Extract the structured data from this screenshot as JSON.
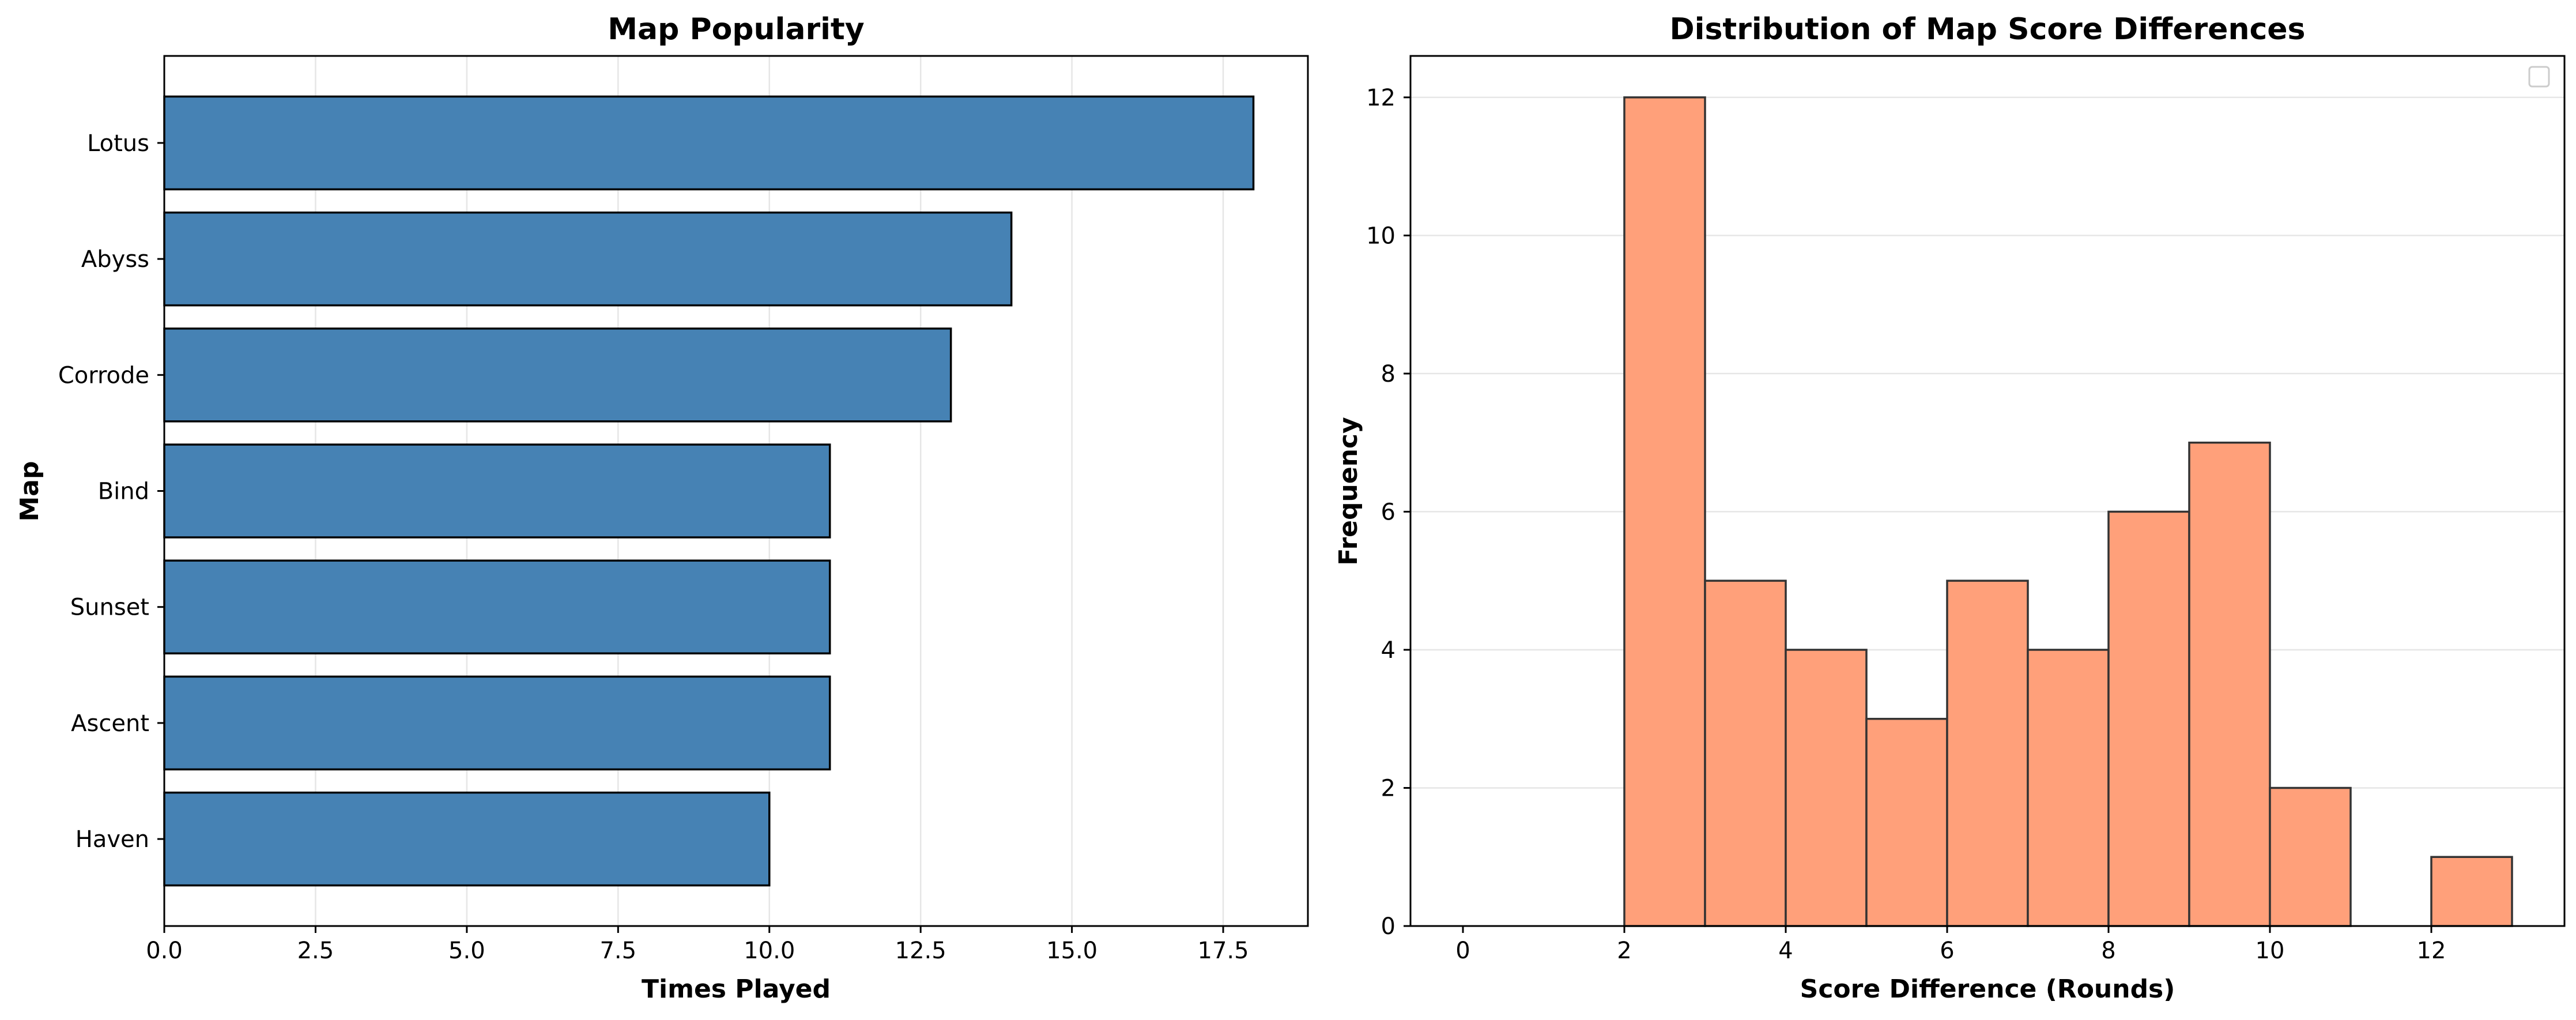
{
  "chart_data": [
    {
      "type": "bar",
      "orientation": "horizontal",
      "title": "Map Popularity",
      "xlabel": "Times Played",
      "ylabel": "Map",
      "categories": [
        "Lotus",
        "Abyss",
        "Corrode",
        "Bind",
        "Sunset",
        "Ascent",
        "Haven"
      ],
      "values": [
        18,
        14,
        13,
        11,
        11,
        11,
        10
      ],
      "xlim": [
        0,
        18.9
      ],
      "xticks": [
        "0.0",
        "2.5",
        "5.0",
        "7.5",
        "10.0",
        "12.5",
        "15.0",
        "17.5"
      ],
      "grid": "vertical",
      "color": "#4682b4"
    },
    {
      "type": "bar",
      "subtype": "histogram",
      "title": "Distribution of Map Score Differences",
      "xlabel": "Score Difference (Rounds)",
      "ylabel": "Frequency",
      "bin_edges": [
        0,
        1,
        2,
        3,
        4,
        5,
        6,
        7,
        8,
        9,
        10,
        11,
        12,
        13
      ],
      "values": [
        0,
        0,
        12,
        5,
        4,
        3,
        5,
        4,
        6,
        7,
        2,
        0,
        1
      ],
      "xlim": [
        -0.65,
        13.65
      ],
      "ylim": [
        0,
        12.6
      ],
      "xticks": [
        "0",
        "2",
        "4",
        "6",
        "8",
        "10",
        "12"
      ],
      "yticks": [
        "0",
        "2",
        "4",
        "6",
        "8",
        "10",
        "12"
      ],
      "grid": "horizontal",
      "legend": "top-right (empty)",
      "color": "#ffa07a"
    }
  ]
}
